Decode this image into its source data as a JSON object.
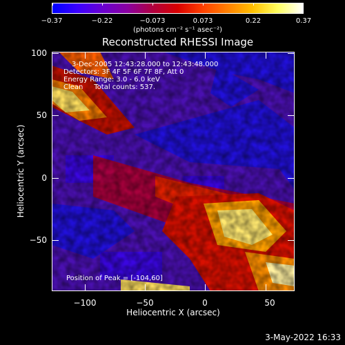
{
  "colorbar": {
    "tick_labels": [
      "−0.37",
      "−0.22",
      "−0.073",
      "0.073",
      "0.22",
      "0.37"
    ],
    "units": "(photons cm⁻² s⁻¹ asec⁻²)",
    "colors": [
      "#0000ff",
      "#3b00ff",
      "#6a00d0",
      "#8a00a0",
      "#b00040",
      "#d80000",
      "#ff4000",
      "#ff8000",
      "#ffc000",
      "#ffff60",
      "#ffffff"
    ]
  },
  "title": "Reconstructed RHESSI Image",
  "annotations": {
    "time": "3-Dec-2005 12:43:28.000 to 12:43:48.000",
    "detectors": "Detectors: 3F 4F 5F 6F 7F 8F, Att 0",
    "energy": "Energy Range: 3.0 - 6.0 keV",
    "method": "Clean     Total counts: 537.",
    "peak": "Position of Peak = [-104,60]"
  },
  "axes": {
    "xlabel": "Heliocentric X (arcsec)",
    "ylabel": "Heliocentric Y (arcsec)",
    "xticks": [
      "−100",
      "−50",
      "0",
      "50"
    ],
    "yticks": [
      "100",
      "50",
      "0",
      "−50"
    ]
  },
  "footer": "3-May-2022 16:33"
}
